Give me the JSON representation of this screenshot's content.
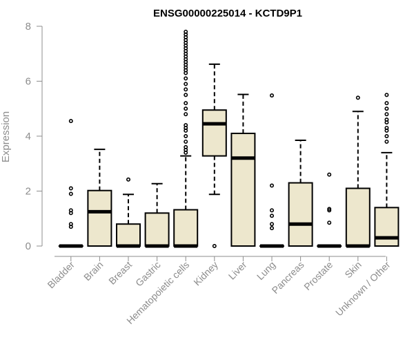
{
  "chart_data": {
    "type": "boxplot",
    "title": "ENSG00000225014 - KCTD9P1",
    "xlabel": "",
    "ylabel": "Expression",
    "ylim": [
      0,
      8
    ],
    "yticks": [
      "0",
      "2",
      "4",
      "6",
      "8"
    ],
    "grid": false,
    "legend": "none",
    "colors": {
      "box_fill": "#ede7cd",
      "stroke": "#000000",
      "axis": "#8c8c8c"
    },
    "categories": [
      "Bladder",
      "Brain",
      "Breast",
      "Gastric",
      "Hematopoietic cells",
      "Kidney",
      "Liver",
      "Lung",
      "Pancreas",
      "Prostate",
      "Skin",
      "Unknown / Other"
    ],
    "boxes": [
      {
        "q1": 0,
        "median": 0,
        "q3": 0,
        "whisker_low": 0,
        "whisker_high": 0,
        "outliers": [
          0.7,
          0.8,
          1.2,
          1.3,
          1.9,
          2.1,
          4.55
        ]
      },
      {
        "q1": 0,
        "median": 1.25,
        "q3": 2.02,
        "whisker_low": 0,
        "whisker_high": 3.52,
        "outliers": []
      },
      {
        "q1": 0,
        "median": 0,
        "q3": 0.8,
        "whisker_low": 0,
        "whisker_high": 1.88,
        "outliers": [
          2.42
        ]
      },
      {
        "q1": 0,
        "median": 0,
        "q3": 1.2,
        "whisker_low": 0,
        "whisker_high": 2.27,
        "outliers": []
      },
      {
        "q1": 0,
        "median": 0,
        "q3": 1.32,
        "whisker_low": 0,
        "whisker_high": 3.28,
        "outliers": [
          3.4,
          3.5,
          3.6,
          3.8,
          4.0,
          4.2,
          4.3,
          4.4,
          4.8,
          5.0,
          5.2,
          5.5,
          5.7,
          5.9,
          6.1,
          6.3,
          6.4,
          6.5,
          6.6,
          6.7,
          6.8,
          6.9,
          7.0,
          7.1,
          7.2,
          7.3,
          7.4,
          7.5,
          7.6,
          7.7,
          7.8
        ]
      },
      {
        "q1": 3.28,
        "median": 4.45,
        "q3": 4.95,
        "whisker_low": 1.88,
        "whisker_high": 6.62,
        "outliers": [
          0
        ]
      },
      {
        "q1": 0,
        "median": 3.2,
        "q3": 4.1,
        "whisker_low": 0,
        "whisker_high": 5.52,
        "outliers": []
      },
      {
        "q1": 0,
        "median": 0,
        "q3": 0,
        "whisker_low": 0,
        "whisker_high": 0,
        "outliers": [
          0.65,
          0.8,
          1.1,
          1.3,
          2.2,
          5.48
        ]
      },
      {
        "q1": 0,
        "median": 0.8,
        "q3": 2.3,
        "whisker_low": 0,
        "whisker_high": 3.85,
        "outliers": []
      },
      {
        "q1": 0,
        "median": 0,
        "q3": 0,
        "whisker_low": 0,
        "whisker_high": 0,
        "outliers": [
          0.85,
          1.3,
          1.35,
          2.6
        ]
      },
      {
        "q1": 0,
        "median": 0,
        "q3": 2.1,
        "whisker_low": 0,
        "whisker_high": 4.9,
        "outliers": [
          5.4
        ]
      },
      {
        "q1": 0,
        "median": 0.3,
        "q3": 1.4,
        "whisker_low": 0,
        "whisker_high": 3.4,
        "outliers": [
          3.8,
          4.0,
          4.2,
          4.3,
          4.5,
          4.6,
          4.8,
          5.0,
          5.2,
          5.5
        ]
      }
    ]
  }
}
